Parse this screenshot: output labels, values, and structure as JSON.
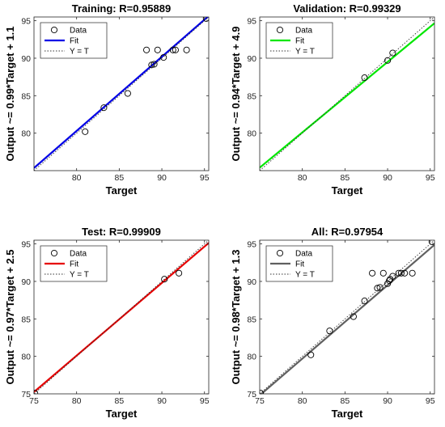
{
  "chart_data": [
    {
      "type": "scatter",
      "title": "Training: R=0.95889",
      "xlabel": "Target",
      "ylabel": "Output ~= 0.99*Target + 1.1",
      "xlim": [
        75,
        95.5
      ],
      "ylim": [
        75,
        95.5
      ],
      "xticks": [
        "80",
        "85",
        "90",
        "95"
      ],
      "yticks": [
        "80",
        "85",
        "90",
        "95"
      ],
      "fit": {
        "slope": 0.99,
        "intercept": 1.1,
        "color": "#0000e6"
      },
      "points": [
        [
          81,
          80.2
        ],
        [
          83.2,
          83.4
        ],
        [
          86,
          85.3
        ],
        [
          88.2,
          91.1
        ],
        [
          88.8,
          89.1
        ],
        [
          89.1,
          89.2
        ],
        [
          89.5,
          91.1
        ],
        [
          90.2,
          90.1
        ],
        [
          91.3,
          91.1
        ],
        [
          91.6,
          91.1
        ],
        [
          92.9,
          91.1
        ],
        [
          95.2,
          95.3
        ]
      ],
      "legend": {
        "position": "top-left",
        "entries": [
          "Data",
          "Fit",
          "Y = T"
        ]
      }
    },
    {
      "type": "scatter",
      "title": "Validation: R=0.99329",
      "xlabel": "Target",
      "ylabel": "Output ~= 0.94*Target + 4.9",
      "xlim": [
        75,
        95.5
      ],
      "ylim": [
        75,
        95.5
      ],
      "xticks": [
        "80",
        "85",
        "90",
        "95"
      ],
      "yticks": [
        "80",
        "85",
        "90",
        "95"
      ],
      "fit": {
        "slope": 0.94,
        "intercept": 4.9,
        "color": "#00e600"
      },
      "points": [
        [
          87.3,
          87.4
        ],
        [
          90,
          89.7
        ],
        [
          90.6,
          90.7
        ]
      ],
      "legend": {
        "position": "top-left",
        "entries": [
          "Data",
          "Fit",
          "Y = T"
        ]
      }
    },
    {
      "type": "scatter",
      "title": "Test: R=0.99909",
      "xlabel": "Target",
      "ylabel": "Output ~= 0.97*Target + 2.5",
      "xlim": [
        75,
        95.5
      ],
      "ylim": [
        75,
        95.5
      ],
      "xticks": [
        "75",
        "80",
        "85",
        "90",
        "95"
      ],
      "yticks": [
        "75",
        "80",
        "85",
        "90",
        "95"
      ],
      "fit": {
        "slope": 0.97,
        "intercept": 2.5,
        "color": "#e60000"
      },
      "points": [
        [
          75.1,
          75.1
        ],
        [
          90.3,
          90.3
        ],
        [
          92,
          91.1
        ]
      ],
      "legend": {
        "position": "top-left",
        "entries": [
          "Data",
          "Fit",
          "Y = T"
        ]
      }
    },
    {
      "type": "scatter",
      "title": "All: R=0.97954",
      "xlabel": "Target",
      "ylabel": "Output ~= 0.98*Target + 1.3",
      "xlim": [
        75,
        95.5
      ],
      "ylim": [
        75,
        95.5
      ],
      "xticks": [
        "75",
        "80",
        "85",
        "90",
        "95"
      ],
      "yticks": [
        "75",
        "80",
        "85",
        "90",
        "95"
      ],
      "fit": {
        "slope": 0.98,
        "intercept": 1.3,
        "color": "#606060"
      },
      "points": [
        [
          75.1,
          75.1
        ],
        [
          81,
          80.2
        ],
        [
          83.2,
          83.4
        ],
        [
          86,
          85.3
        ],
        [
          87.3,
          87.4
        ],
        [
          88.2,
          91.1
        ],
        [
          88.8,
          89.1
        ],
        [
          89.1,
          89.2
        ],
        [
          89.5,
          91.1
        ],
        [
          90,
          89.7
        ],
        [
          90.2,
          90.1
        ],
        [
          90.3,
          90.3
        ],
        [
          90.6,
          90.7
        ],
        [
          91.3,
          91.1
        ],
        [
          91.6,
          91.1
        ],
        [
          92,
          91.1
        ],
        [
          92.9,
          91.1
        ],
        [
          95.2,
          95.3
        ]
      ],
      "legend": {
        "position": "top-left",
        "entries": [
          "Data",
          "Fit",
          "Y = T"
        ]
      }
    }
  ]
}
